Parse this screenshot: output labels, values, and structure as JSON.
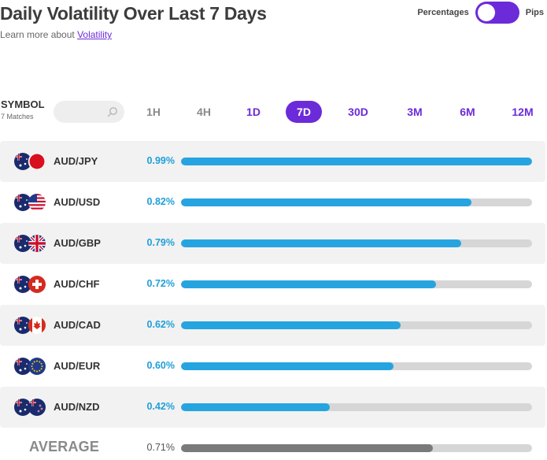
{
  "header": {
    "title": "Daily Volatility Over Last 7 Days",
    "learn_prefix": "Learn more about ",
    "learn_link": "Volatility",
    "toggle_left": "Percentages",
    "toggle_right": "Pips"
  },
  "filter": {
    "symbol_label": "SYMBOL",
    "matches": "7 Matches",
    "search_value": "",
    "timeframes": [
      {
        "label": "1H",
        "state": "dim"
      },
      {
        "label": "4H",
        "state": "dim"
      },
      {
        "label": "1D",
        "state": "purple"
      },
      {
        "label": "7D",
        "state": "active"
      },
      {
        "label": "30D",
        "state": "purple"
      },
      {
        "label": "3M",
        "state": "purple"
      },
      {
        "label": "6M",
        "state": "purple"
      },
      {
        "label": "12M",
        "state": "purple"
      }
    ]
  },
  "rows": [
    {
      "pair": "AUD/JPY",
      "pct": "0.99%",
      "value": 0.99,
      "flag": "jp-flag-icon"
    },
    {
      "pair": "AUD/USD",
      "pct": "0.82%",
      "value": 0.82,
      "flag": "us-flag-icon"
    },
    {
      "pair": "AUD/GBP",
      "pct": "0.79%",
      "value": 0.79,
      "flag": "gb-flag-icon"
    },
    {
      "pair": "AUD/CHF",
      "pct": "0.72%",
      "value": 0.72,
      "flag": "ch-flag-icon"
    },
    {
      "pair": "AUD/CAD",
      "pct": "0.62%",
      "value": 0.62,
      "flag": "ca-flag-icon"
    },
    {
      "pair": "AUD/EUR",
      "pct": "0.60%",
      "value": 0.6,
      "flag": "eu-flag-icon"
    },
    {
      "pair": "AUD/NZD",
      "pct": "0.42%",
      "value": 0.42,
      "flag": "nz-flag-icon"
    }
  ],
  "average": {
    "label": "AVERAGE",
    "pct": "0.71%",
    "value": 0.71
  },
  "colors": {
    "accent": "#6c2bd9",
    "bar": "#26a4e0",
    "avg_bar": "#7a7a7a",
    "track": "#d6d6d6"
  }
}
